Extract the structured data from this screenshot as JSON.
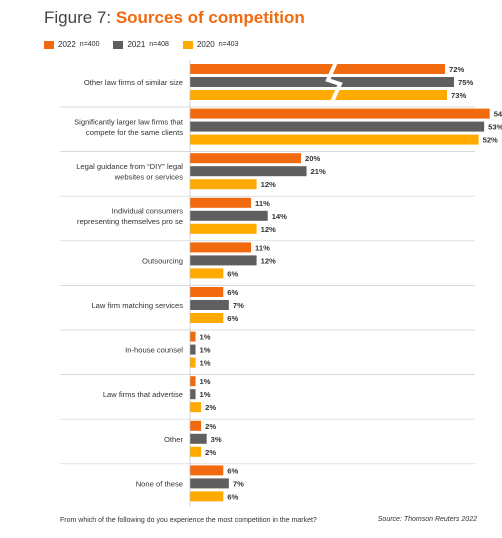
{
  "header": {
    "figure_label": "Figure 7:",
    "title": "Sources of competition"
  },
  "colors": {
    "title_accent": "#f26a0f",
    "s2022": "#f26a0f",
    "s2021": "#5f5f5f",
    "s2020": "#ffaa00",
    "divider": "#cfcfcf"
  },
  "legend": [
    {
      "year": "2022",
      "n": "n=400",
      "color": "#f26a0f"
    },
    {
      "year": "2021",
      "n": "n=408",
      "color": "#5f5f5f"
    },
    {
      "year": "2020",
      "n": "n=403",
      "color": "#ffaa00"
    }
  ],
  "chart_data": {
    "type": "bar",
    "orientation": "horizontal",
    "title": "Sources of competition",
    "categories": [
      "Other law firms of similar size",
      "Significantly larger law firms that compete for the same clients",
      "Legal guidance from “DIY” legal websites or services",
      "Individual consumers representing themselves pro se",
      "Outsourcing",
      "Law firm matching services",
      "In-house counsel",
      "Law firms that advertise",
      "Other",
      "None of these"
    ],
    "category_lines": [
      [
        "Other law firms of similar size"
      ],
      [
        "Significantly larger law firms that",
        "compete for the same clients"
      ],
      [
        "Legal guidance from “DIY” legal",
        "websites or services"
      ],
      [
        "Individual consumers",
        "representing themselves pro se"
      ],
      [
        "Outsourcing"
      ],
      [
        "Law firm matching services"
      ],
      [
        "In-house counsel"
      ],
      [
        "Law firms that advertise"
      ],
      [
        "Other"
      ],
      [
        "None of these"
      ]
    ],
    "series": [
      {
        "name": "2022",
        "color": "#f26a0f",
        "values": [
          72,
          54,
          20,
          11,
          11,
          6,
          1,
          1,
          2,
          6
        ]
      },
      {
        "name": "2021",
        "color": "#5f5f5f",
        "values": [
          75,
          53,
          21,
          14,
          12,
          7,
          1,
          1,
          3,
          7
        ]
      },
      {
        "name": "2020",
        "color": "#ffaa00",
        "values": [
          73,
          52,
          12,
          12,
          6,
          6,
          1,
          2,
          2,
          6
        ]
      }
    ],
    "value_suffix": "%",
    "axis_break": true,
    "broken_categories": [
      0
    ],
    "grid": false,
    "legend_position": "top-left"
  },
  "footer": {
    "question": "From which of the following do you experience the most competition in the market?",
    "source": "Source: Thomson Reuters 2022"
  }
}
